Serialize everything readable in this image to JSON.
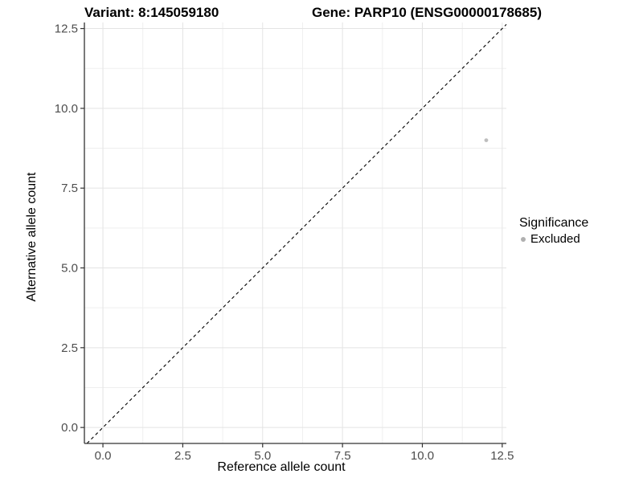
{
  "chart_data": {
    "type": "scatter",
    "titles": {
      "variant": "Variant: 8:145059180",
      "gene": "Gene: PARP10 (ENSG00000178685)"
    },
    "xlabel": "Reference allele count",
    "ylabel": "Alternative allele count",
    "x_ticks": {
      "values": [
        0,
        2.5,
        5,
        7.5,
        10,
        12.5
      ],
      "labels": [
        "0.0",
        "2.5",
        "5.0",
        "7.5",
        "10.0",
        "12.5"
      ]
    },
    "y_ticks": {
      "values": [
        0,
        2.5,
        5,
        7.5,
        10,
        12.5
      ],
      "labels": [
        "0.0",
        "2.5",
        "5.0",
        "7.5",
        "10.0",
        "12.5"
      ]
    },
    "x_minor": [
      1.25,
      3.75,
      6.25,
      8.75,
      11.25
    ],
    "y_minor": [
      1.25,
      3.75,
      6.25,
      8.75,
      11.25
    ],
    "xlim": [
      -0.58,
      12.63
    ],
    "ylim": [
      -0.5,
      12.69
    ],
    "grid": "major+minor",
    "identity_line": {
      "slope": 1,
      "intercept": 0,
      "style": "dashed",
      "color": "#000000"
    },
    "series": [
      {
        "name": "Excluded",
        "color": "#bebebe",
        "point_radius": 2.4,
        "points": [
          {
            "x": 12,
            "y": 9
          }
        ]
      }
    ],
    "legend": {
      "position": "right",
      "title": "Significance",
      "items": [
        {
          "label": "Excluded",
          "color": "#b0b0b0"
        }
      ]
    },
    "style_colors": {
      "axis_line": "#333333",
      "tick_mark": "#333333",
      "tick_label": "#4d4d4d",
      "grid_major": "#e4e4e4",
      "grid_minor": "#efefef",
      "background": "#ffffff"
    }
  }
}
